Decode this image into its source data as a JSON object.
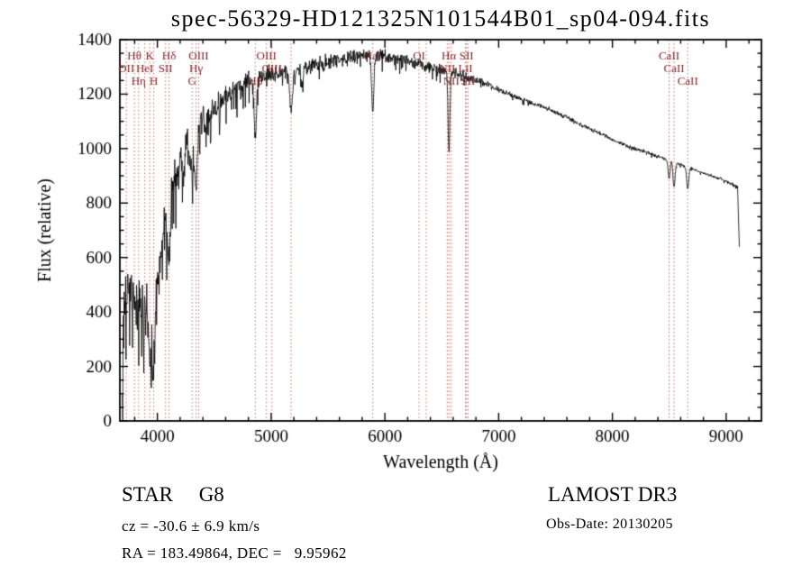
{
  "title": "spec-56329-HD121325N101544B01_sp04-094.fits",
  "annotations": {
    "class_type": "STAR     G8",
    "survey": "LAMOST DR3",
    "cz": "cz = -30.6 ± 6.9 km/s",
    "obs_date": "Obs-Date: 20130205",
    "ra_dec": "RA = 183.49864, DEC =   9.95962"
  },
  "chart_data": {
    "type": "line",
    "title": "spec-56329-HD121325N101544B01_sp04-094.fits",
    "xlabel": "Wavelength (Å)",
    "ylabel": "Flux (relative)",
    "xlim": [
      3670,
      9310
    ],
    "ylim": [
      0,
      1400
    ],
    "xticks": [
      4000,
      5000,
      6000,
      7000,
      8000,
      9000
    ],
    "xminor": 200,
    "yticks": [
      0,
      200,
      400,
      600,
      800,
      1000,
      1200,
      1400
    ],
    "yminor": 50,
    "grid": false,
    "legend": "none",
    "colors": {
      "spectrum": "#000000",
      "axis": "#000000",
      "marker_line": "#c46a6a",
      "marker_label": "#7d1f1f"
    },
    "x_start": 3692,
    "x_end": 9118,
    "sample_step": 3.2,
    "noise_seed": 20130205,
    "envelope": [
      [
        3692,
        80
      ],
      [
        3698,
        300
      ],
      [
        3706,
        470
      ],
      [
        3720,
        515
      ],
      [
        3760,
        500
      ],
      [
        3800,
        472
      ],
      [
        3845,
        445
      ],
      [
        3890,
        432
      ],
      [
        3935,
        428
      ],
      [
        3970,
        430
      ],
      [
        4005,
        520
      ],
      [
        4040,
        640
      ],
      [
        4080,
        760
      ],
      [
        4120,
        850
      ],
      [
        4160,
        900
      ],
      [
        4200,
        948
      ],
      [
        4260,
        1008
      ],
      [
        4320,
        1050
      ],
      [
        4380,
        1088
      ],
      [
        4440,
        1120
      ],
      [
        4500,
        1150
      ],
      [
        4560,
        1180
      ],
      [
        4620,
        1205
      ],
      [
        4700,
        1225
      ],
      [
        4800,
        1245
      ],
      [
        4900,
        1262
      ],
      [
        5000,
        1272
      ],
      [
        5100,
        1280
      ],
      [
        5200,
        1288
      ],
      [
        5300,
        1297
      ],
      [
        5400,
        1307
      ],
      [
        5500,
        1317
      ],
      [
        5600,
        1327
      ],
      [
        5700,
        1334
      ],
      [
        5800,
        1339
      ],
      [
        5900,
        1341
      ],
      [
        6000,
        1337
      ],
      [
        6100,
        1328
      ],
      [
        6200,
        1318
      ],
      [
        6300,
        1308
      ],
      [
        6400,
        1297
      ],
      [
        6500,
        1287
      ],
      [
        6600,
        1277
      ],
      [
        6700,
        1266
      ],
      [
        6800,
        1252
      ],
      [
        6900,
        1236
      ],
      [
        7000,
        1216
      ],
      [
        7100,
        1196
      ],
      [
        7200,
        1181
      ],
      [
        7300,
        1166
      ],
      [
        7400,
        1151
      ],
      [
        7500,
        1133
      ],
      [
        7600,
        1113
      ],
      [
        7700,
        1093
      ],
      [
        7800,
        1073
      ],
      [
        7900,
        1053
      ],
      [
        8000,
        1033
      ],
      [
        8100,
        1016
      ],
      [
        8200,
        1000
      ],
      [
        8300,
        986
      ],
      [
        8400,
        971
      ],
      [
        8500,
        956
      ],
      [
        8600,
        941
      ],
      [
        8700,
        926
      ],
      [
        8800,
        911
      ],
      [
        8900,
        896
      ],
      [
        9000,
        881
      ],
      [
        9060,
        868
      ],
      [
        9100,
        856
      ],
      [
        9108,
        750
      ],
      [
        9116,
        640
      ],
      [
        9118,
        610
      ]
    ],
    "noise_profile": [
      [
        3692,
        115
      ],
      [
        3800,
        115
      ],
      [
        3900,
        105
      ],
      [
        4000,
        90
      ],
      [
        4100,
        80
      ],
      [
        4200,
        72
      ],
      [
        4350,
        60
      ],
      [
        4500,
        48
      ],
      [
        4700,
        42
      ],
      [
        5000,
        36
      ],
      [
        5300,
        32
      ],
      [
        5600,
        28
      ],
      [
        5900,
        26
      ],
      [
        6200,
        24
      ],
      [
        6500,
        22
      ],
      [
        6800,
        18
      ],
      [
        7000,
        12
      ],
      [
        7300,
        10
      ],
      [
        7600,
        9
      ],
      [
        8000,
        8
      ],
      [
        8500,
        7
      ],
      [
        9000,
        6
      ],
      [
        9118,
        8
      ]
    ],
    "spike_profile": [
      [
        3692,
        0.2
      ],
      [
        4000,
        0.17
      ],
      [
        4400,
        0.15
      ],
      [
        4800,
        0.12
      ],
      [
        5200,
        0.09
      ],
      [
        5600,
        0.06
      ],
      [
        6000,
        0.05
      ],
      [
        6600,
        0.04
      ],
      [
        7000,
        0.02
      ],
      [
        9118,
        0.015
      ]
    ],
    "absorption_features": [
      {
        "center": 3933,
        "depth": 195,
        "width": 13
      },
      {
        "center": 3968,
        "depth": 190,
        "width": 13
      },
      {
        "center": 4102,
        "depth": 215,
        "width": 11
      },
      {
        "center": 4226,
        "depth": 100,
        "width": 8
      },
      {
        "center": 4305,
        "depth": 115,
        "width": 16
      },
      {
        "center": 4340,
        "depth": 195,
        "width": 10
      },
      {
        "center": 4861,
        "depth": 200,
        "width": 10
      },
      {
        "center": 5175,
        "depth": 150,
        "width": 13
      },
      {
        "center": 5270,
        "depth": 70,
        "width": 10
      },
      {
        "center": 5893,
        "depth": 195,
        "width": 10
      },
      {
        "center": 6563,
        "depth": 295,
        "width": 8
      },
      {
        "center": 8498,
        "depth": 70,
        "width": 8
      },
      {
        "center": 8542,
        "depth": 90,
        "width": 9
      },
      {
        "center": 8662,
        "depth": 80,
        "width": 9
      }
    ],
    "line_markers": [
      {
        "wavelength": 3727,
        "label": "OII",
        "row": 1
      },
      {
        "wavelength": 3798,
        "label": "Hθ",
        "row": 0
      },
      {
        "wavelength": 3835,
        "label": "Hη",
        "row": 2
      },
      {
        "wavelength": 3889,
        "label": "HeI",
        "row": 1
      },
      {
        "wavelength": 3933,
        "label": "K",
        "row": 0
      },
      {
        "wavelength": 3968,
        "label": "H",
        "row": 2
      },
      {
        "wavelength": 4072,
        "label": "SII",
        "row": 1
      },
      {
        "wavelength": 4102,
        "label": "Hδ",
        "row": 0
      },
      {
        "wavelength": 4305,
        "label": "G",
        "row": 2
      },
      {
        "wavelength": 4340,
        "label": "Hγ",
        "row": 1
      },
      {
        "wavelength": 4363,
        "label": "OIII",
        "row": 0
      },
      {
        "wavelength": 4861,
        "label": "Hβ",
        "row": 2
      },
      {
        "wavelength": 4959,
        "label": "OIII",
        "row": 0
      },
      {
        "wavelength": 5007,
        "label": "OIII",
        "row": 1
      },
      {
        "wavelength": 5175,
        "label": "",
        "row": 0
      },
      {
        "wavelength": 5893,
        "label": "NaI",
        "row": 0
      },
      {
        "wavelength": 6300,
        "label": "OI",
        "row": 0
      },
      {
        "wavelength": 6363,
        "label": "",
        "row": 0
      },
      {
        "wavelength": 6548,
        "label": "NII",
        "row": 1
      },
      {
        "wavelength": 6563,
        "label": "Hα",
        "row": 0
      },
      {
        "wavelength": 6583,
        "label": "NII",
        "row": 2
      },
      {
        "wavelength": 6708,
        "label": "LiI",
        "row": 1
      },
      {
        "wavelength": 6717,
        "label": "SII",
        "row": 0
      },
      {
        "wavelength": 6731,
        "label": "SII",
        "row": 2
      },
      {
        "wavelength": 8498,
        "label": "CaII",
        "row": 0
      },
      {
        "wavelength": 8542,
        "label": "CaII",
        "row": 1
      },
      {
        "wavelength": 8662,
        "label": "CaII",
        "row": 2
      }
    ]
  }
}
